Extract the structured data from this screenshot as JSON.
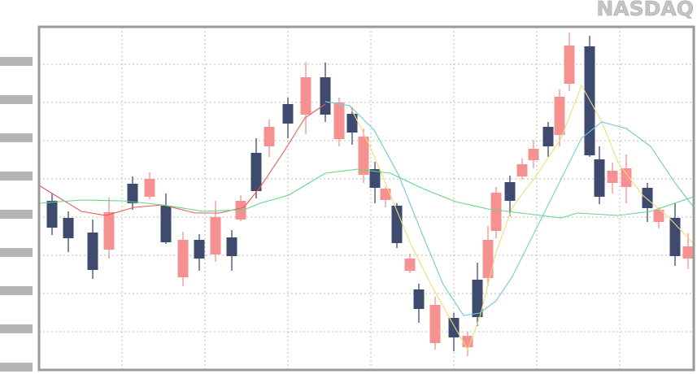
{
  "chart_data": {
    "type": "candlestick",
    "title": "NASDAQ",
    "x": [
      16,
      36,
      66,
      86,
      115,
      136,
      156,
      177,
      197,
      217,
      237,
      248,
      267,
      283,
      306,
      328,
      352,
      369,
      385,
      399,
      413,
      426,
      440,
      456,
      467,
      487,
      510,
      527,
      539,
      552,
      562,
      579,
      594,
      608,
      626,
      640,
      652,
      677,
      689,
      705,
      722,
      748,
      762,
      782,
      798
    ],
    "open": [
      208,
      187,
      169,
      148,
      229,
      213,
      202,
      114,
      160,
      142,
      163,
      185,
      267,
      275,
      327,
      314,
      360,
      284,
      315,
      240,
      247,
      209,
      202,
      122,
      99,
      33,
      64,
      28,
      111,
      113,
      171,
      231,
      238,
      258,
      299,
      289,
      352,
      398,
      259,
      230,
      225,
      224,
      182,
      187,
      137
    ],
    "high": [
      217,
      195,
      185,
      212,
      238,
      243,
      217,
      170,
      167,
      208,
      172,
      215,
      285,
      308,
      335,
      379,
      378,
      335,
      323,
      297,
      256,
      225,
      205,
      143,
      106,
      90,
      70,
      47,
      132,
      177,
      225,
      239,
      260,
      283,
      305,
      345,
      415,
      411,
      275,
      255,
      265,
      230,
      200,
      205,
      168
    ],
    "low": [
      166,
      145,
      112,
      137,
      197,
      210,
      155,
      103,
      122,
      133,
      122,
      183,
      211,
      262,
      285,
      290,
      305,
      275,
      277,
      230,
      205,
      200,
      150,
      119,
      58,
      25,
      23,
      17,
      54,
      103,
      162,
      189,
      234,
      248,
      262,
      275,
      343,
      262,
      204,
      217,
      205,
      182,
      174,
      128,
      124
    ],
    "close": [
      175,
      162,
      123,
      194,
      205,
      235,
      157,
      160,
      137,
      188,
      140,
      208,
      220,
      299,
      303,
      360,
      314,
      329,
      292,
      287,
      224,
      223,
      156,
      137,
      75,
      80,
      40,
      42,
      65,
      160,
      218,
      208,
      253,
      272,
      275,
      336,
      399,
      264,
      213,
      245,
      248,
      199,
      197,
      140,
      152
    ],
    "up_color": "#f59191",
    "down_color": "#3f4b6e",
    "lines": [
      {
        "color": "#e85a5a",
        "x": [
          0,
          52,
          82,
          117,
          152,
          192,
          222,
          252,
          272,
          302,
          327,
          352
        ],
        "values": [
          227,
          195,
          190,
          200,
          203,
          193,
          193,
          200,
          225,
          270,
          310,
          327
        ]
      },
      {
        "color": "#f2dc7a",
        "x": [
          352,
          382,
          407,
          432,
          457,
          482,
          507,
          527,
          542,
          562,
          582,
          612,
          642,
          667,
          692,
          712,
          742,
          772,
          805
        ],
        "values": [
          330,
          325,
          275,
          215,
          155,
          105,
          60,
          25,
          65,
          145,
          200,
          240,
          285,
          350,
          305,
          255,
          215,
          190,
          155
        ]
      },
      {
        "color": "#6fcad6",
        "x": [
          352,
          382,
          412,
          442,
          472,
          497,
          522,
          542,
          562,
          582,
          612,
          642,
          667,
          692,
          722,
          752,
          782,
          805
        ],
        "values": [
          330,
          325,
          295,
          240,
          165,
          105,
          67,
          70,
          85,
          115,
          175,
          235,
          285,
          305,
          297,
          275,
          230,
          200
        ]
      },
      {
        "color": "#5fd882",
        "x": [
          0,
          52,
          102,
          152,
          202,
          252,
          272,
          307,
          352,
          392,
          432,
          472,
          512,
          552,
          592,
          642,
          662,
          712,
          752,
          805
        ],
        "values": [
          205,
          209,
          208,
          203,
          195,
          197,
          205,
          215,
          242,
          247,
          242,
          223,
          207,
          198,
          193,
          187,
          193,
          190,
          195,
          213
        ]
      }
    ],
    "xlim": [
      0,
      805
    ],
    "ylim": [
      0,
      422
    ],
    "xticks": [
      102,
      204,
      306,
      408,
      510,
      612,
      714
    ],
    "yticks": [
      0,
      47,
      94,
      141,
      188,
      235,
      282,
      329,
      376
    ],
    "grid": true
  }
}
